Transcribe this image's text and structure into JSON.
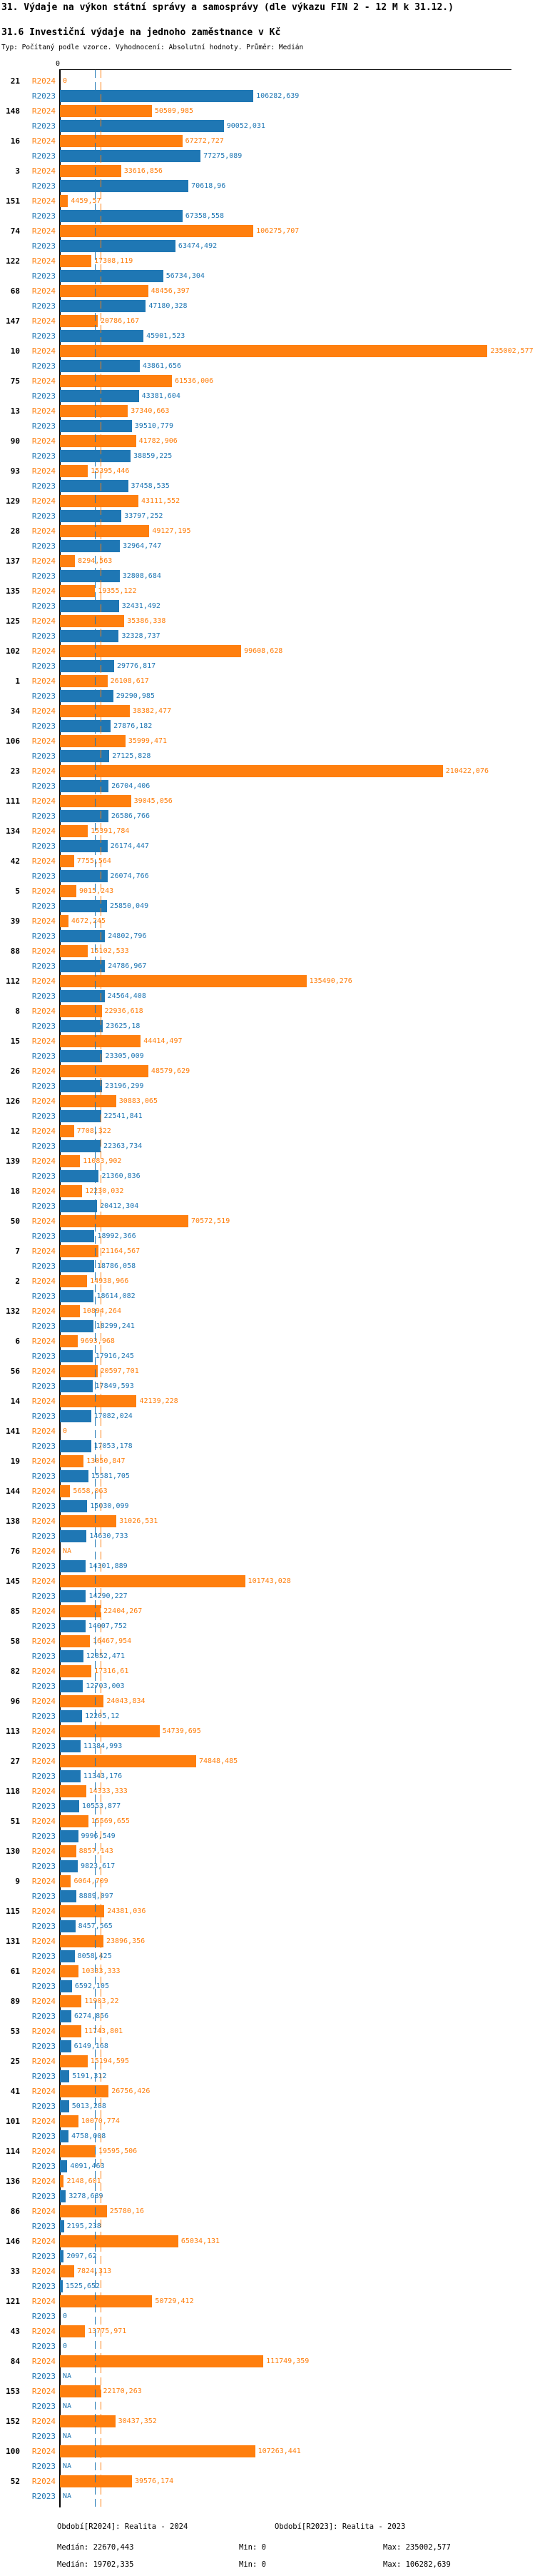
{
  "header": {
    "title": "31. Výdaje na výkon státní správy a samosprávy (dle výkazu FIN 2 - 12 M k 31.12.)",
    "subtitle": "31.6 Investiční výdaje na jednoho zaměstnance v Kč",
    "meta": "Typ: Počítaný podle vzorce. Vyhodnocení: Absolutní hodnoty. Průměr: Medián"
  },
  "chart_data": {
    "type": "bar",
    "orientation": "horizontal",
    "title": "31.6 Investiční výdaje na jednoho zaměstnance v Kč",
    "xlabel": "",
    "ylabel": "",
    "x_axis": {
      "tick_zero": "0",
      "max": 245000,
      "grid": false
    },
    "legend_position": "bottom",
    "series": [
      {
        "name": "R2024",
        "label": "Období[R2024]: Realita - 2024",
        "color": "#ff7f0e",
        "median": 22670.443,
        "min": 0,
        "max": 235002.577
      },
      {
        "name": "R2023",
        "label": "Období[R2023]: Realita - 2023",
        "color": "#1f77b4",
        "median": 19702.335,
        "min": 0,
        "max": 106282.639
      }
    ],
    "groups": [
      {
        "id": "21",
        "R2024": "0",
        "R2023": "106282,639"
      },
      {
        "id": "148",
        "R2024": "50509,985",
        "R2023": "90052,031"
      },
      {
        "id": "16",
        "R2024": "67272,727",
        "R2023": "77275,089"
      },
      {
        "id": "3",
        "R2024": "33616,856",
        "R2023": "70618,96"
      },
      {
        "id": "151",
        "R2024": "4459,57",
        "R2023": "67358,558"
      },
      {
        "id": "74",
        "R2024": "106275,707",
        "R2023": "63474,492"
      },
      {
        "id": "122",
        "R2024": "17308,119",
        "R2023": "56734,304"
      },
      {
        "id": "68",
        "R2024": "48456,397",
        "R2023": "47180,328"
      },
      {
        "id": "147",
        "R2024": "20786,167",
        "R2023": "45901,523"
      },
      {
        "id": "10",
        "R2024": "235002,577",
        "R2023": "43861,656"
      },
      {
        "id": "75",
        "R2024": "61536,006",
        "R2023": "43381,604"
      },
      {
        "id": "13",
        "R2024": "37340,663",
        "R2023": "39510,779"
      },
      {
        "id": "90",
        "R2024": "41782,906",
        "R2023": "38859,225"
      },
      {
        "id": "93",
        "R2024": "15395,446",
        "R2023": "37458,535"
      },
      {
        "id": "129",
        "R2024": "43111,552",
        "R2023": "33797,252"
      },
      {
        "id": "28",
        "R2024": "49127,195",
        "R2023": "32964,747"
      },
      {
        "id": "137",
        "R2024": "8294,563",
        "R2023": "32808,684"
      },
      {
        "id": "135",
        "R2024": "19355,122",
        "R2023": "32431,492"
      },
      {
        "id": "125",
        "R2024": "35386,338",
        "R2023": "32328,737"
      },
      {
        "id": "102",
        "R2024": "99608,628",
        "R2023": "29776,817"
      },
      {
        "id": "1",
        "R2024": "26108,617",
        "R2023": "29290,985"
      },
      {
        "id": "34",
        "R2024": "38382,477",
        "R2023": "27876,182"
      },
      {
        "id": "106",
        "R2024": "35999,471",
        "R2023": "27125,828"
      },
      {
        "id": "23",
        "R2024": "210422,076",
        "R2023": "26704,406"
      },
      {
        "id": "111",
        "R2024": "39045,056",
        "R2023": "26586,766"
      },
      {
        "id": "134",
        "R2024": "15391,784",
        "R2023": "26174,447"
      },
      {
        "id": "42",
        "R2024": "7755,564",
        "R2023": "26074,766"
      },
      {
        "id": "5",
        "R2024": "9015,243",
        "R2023": "25850,049"
      },
      {
        "id": "39",
        "R2024": "4672,245",
        "R2023": "24802,796"
      },
      {
        "id": "88",
        "R2024": "15102,533",
        "R2023": "24786,967"
      },
      {
        "id": "112",
        "R2024": "135490,276",
        "R2023": "24564,408"
      },
      {
        "id": "8",
        "R2024": "22936,618",
        "R2023": "23625,18"
      },
      {
        "id": "15",
        "R2024": "44414,497",
        "R2023": "23305,009"
      },
      {
        "id": "26",
        "R2024": "48579,629",
        "R2023": "23196,299"
      },
      {
        "id": "126",
        "R2024": "30883,065",
        "R2023": "22541,841"
      },
      {
        "id": "12",
        "R2024": "7708,322",
        "R2023": "22363,734"
      },
      {
        "id": "139",
        "R2024": "11083,902",
        "R2023": "21360,836"
      },
      {
        "id": "18",
        "R2024": "12230,032",
        "R2023": "20412,304"
      },
      {
        "id": "50",
        "R2024": "70572,519",
        "R2023": "18992,366"
      },
      {
        "id": "7",
        "R2024": "21164,567",
        "R2023": "18786,058"
      },
      {
        "id": "2",
        "R2024": "14938,966",
        "R2023": "18614,082"
      },
      {
        "id": "132",
        "R2024": "10894,264",
        "R2023": "18299,241"
      },
      {
        "id": "6",
        "R2024": "9693,968",
        "R2023": "17916,245"
      },
      {
        "id": "56",
        "R2024": "20597,701",
        "R2023": "17849,593"
      },
      {
        "id": "14",
        "R2024": "42139,228",
        "R2023": "17082,024"
      },
      {
        "id": "141",
        "R2024": "0",
        "R2023": "17053,178"
      },
      {
        "id": "19",
        "R2024": "13050,847",
        "R2023": "15581,705"
      },
      {
        "id": "144",
        "R2024": "5658,063",
        "R2023": "15030,099"
      },
      {
        "id": "138",
        "R2024": "31026,531",
        "R2023": "14630,733"
      },
      {
        "id": "76",
        "R2024": "NA",
        "R2023": "14301,889"
      },
      {
        "id": "145",
        "R2024": "101743,028",
        "R2023": "14290,227"
      },
      {
        "id": "85",
        "R2024": "22404,267",
        "R2023": "14007,752"
      },
      {
        "id": "58",
        "R2024": "16467,954",
        "R2023": "12852,471"
      },
      {
        "id": "82",
        "R2024": "17316,61",
        "R2023": "12703,003"
      },
      {
        "id": "96",
        "R2024": "24043,834",
        "R2023": "12205,12"
      },
      {
        "id": "113",
        "R2024": "54739,695",
        "R2023": "11384,993"
      },
      {
        "id": "27",
        "R2024": "74848,485",
        "R2023": "11343,176"
      },
      {
        "id": "118",
        "R2024": "14333,333",
        "R2023": "10553,877"
      },
      {
        "id": "51",
        "R2024": "15569,655",
        "R2023": "9996,549"
      },
      {
        "id": "130",
        "R2024": "8857,143",
        "R2023": "9823,617"
      },
      {
        "id": "9",
        "R2024": "6064,709",
        "R2023": "8889,097"
      },
      {
        "id": "115",
        "R2024": "24381,036",
        "R2023": "8457,565"
      },
      {
        "id": "131",
        "R2024": "23896,356",
        "R2023": "8058,425"
      },
      {
        "id": "61",
        "R2024": "10333,333",
        "R2023": "6592,105"
      },
      {
        "id": "89",
        "R2024": "11903,22",
        "R2023": "6274,856"
      },
      {
        "id": "53",
        "R2024": "11743,801",
        "R2023": "6149,168"
      },
      {
        "id": "25",
        "R2024": "15194,595",
        "R2023": "5191,312"
      },
      {
        "id": "41",
        "R2024": "26756,426",
        "R2023": "5013,288"
      },
      {
        "id": "101",
        "R2024": "10070,774",
        "R2023": "4758,008"
      },
      {
        "id": "114",
        "R2024": "19595,506",
        "R2023": "4091,463"
      },
      {
        "id": "136",
        "R2024": "2148,601",
        "R2023": "3278,689"
      },
      {
        "id": "86",
        "R2024": "25780,16",
        "R2023": "2195,238"
      },
      {
        "id": "146",
        "R2024": "65034,131",
        "R2023": "2097,62"
      },
      {
        "id": "33",
        "R2024": "7824,313",
        "R2023": "1525,652"
      },
      {
        "id": "121",
        "R2024": "50729,412",
        "R2023": "0"
      },
      {
        "id": "43",
        "R2024": "13775,971",
        "R2023": "0"
      },
      {
        "id": "84",
        "R2024": "111749,359",
        "R2023": "NA"
      },
      {
        "id": "153",
        "R2024": "22170,263",
        "R2023": "NA"
      },
      {
        "id": "152",
        "R2024": "30437,352",
        "R2023": "NA"
      },
      {
        "id": "100",
        "R2024": "107263,441",
        "R2023": "NA"
      },
      {
        "id": "52",
        "R2024": "39576,174",
        "R2023": "NA"
      }
    ]
  },
  "footer": {
    "legend_r2024": "Období[R2024]: Realita - 2024",
    "legend_r2023": "Období[R2023]: Realita - 2023",
    "stats_r2024": {
      "median": "Medián: 22670,443",
      "min": "Min: 0",
      "max": "Max: 235002,577"
    },
    "stats_r2023": {
      "median": "Medián: 19702,335",
      "min": "Min: 0",
      "max": "Max: 106282,639"
    }
  }
}
